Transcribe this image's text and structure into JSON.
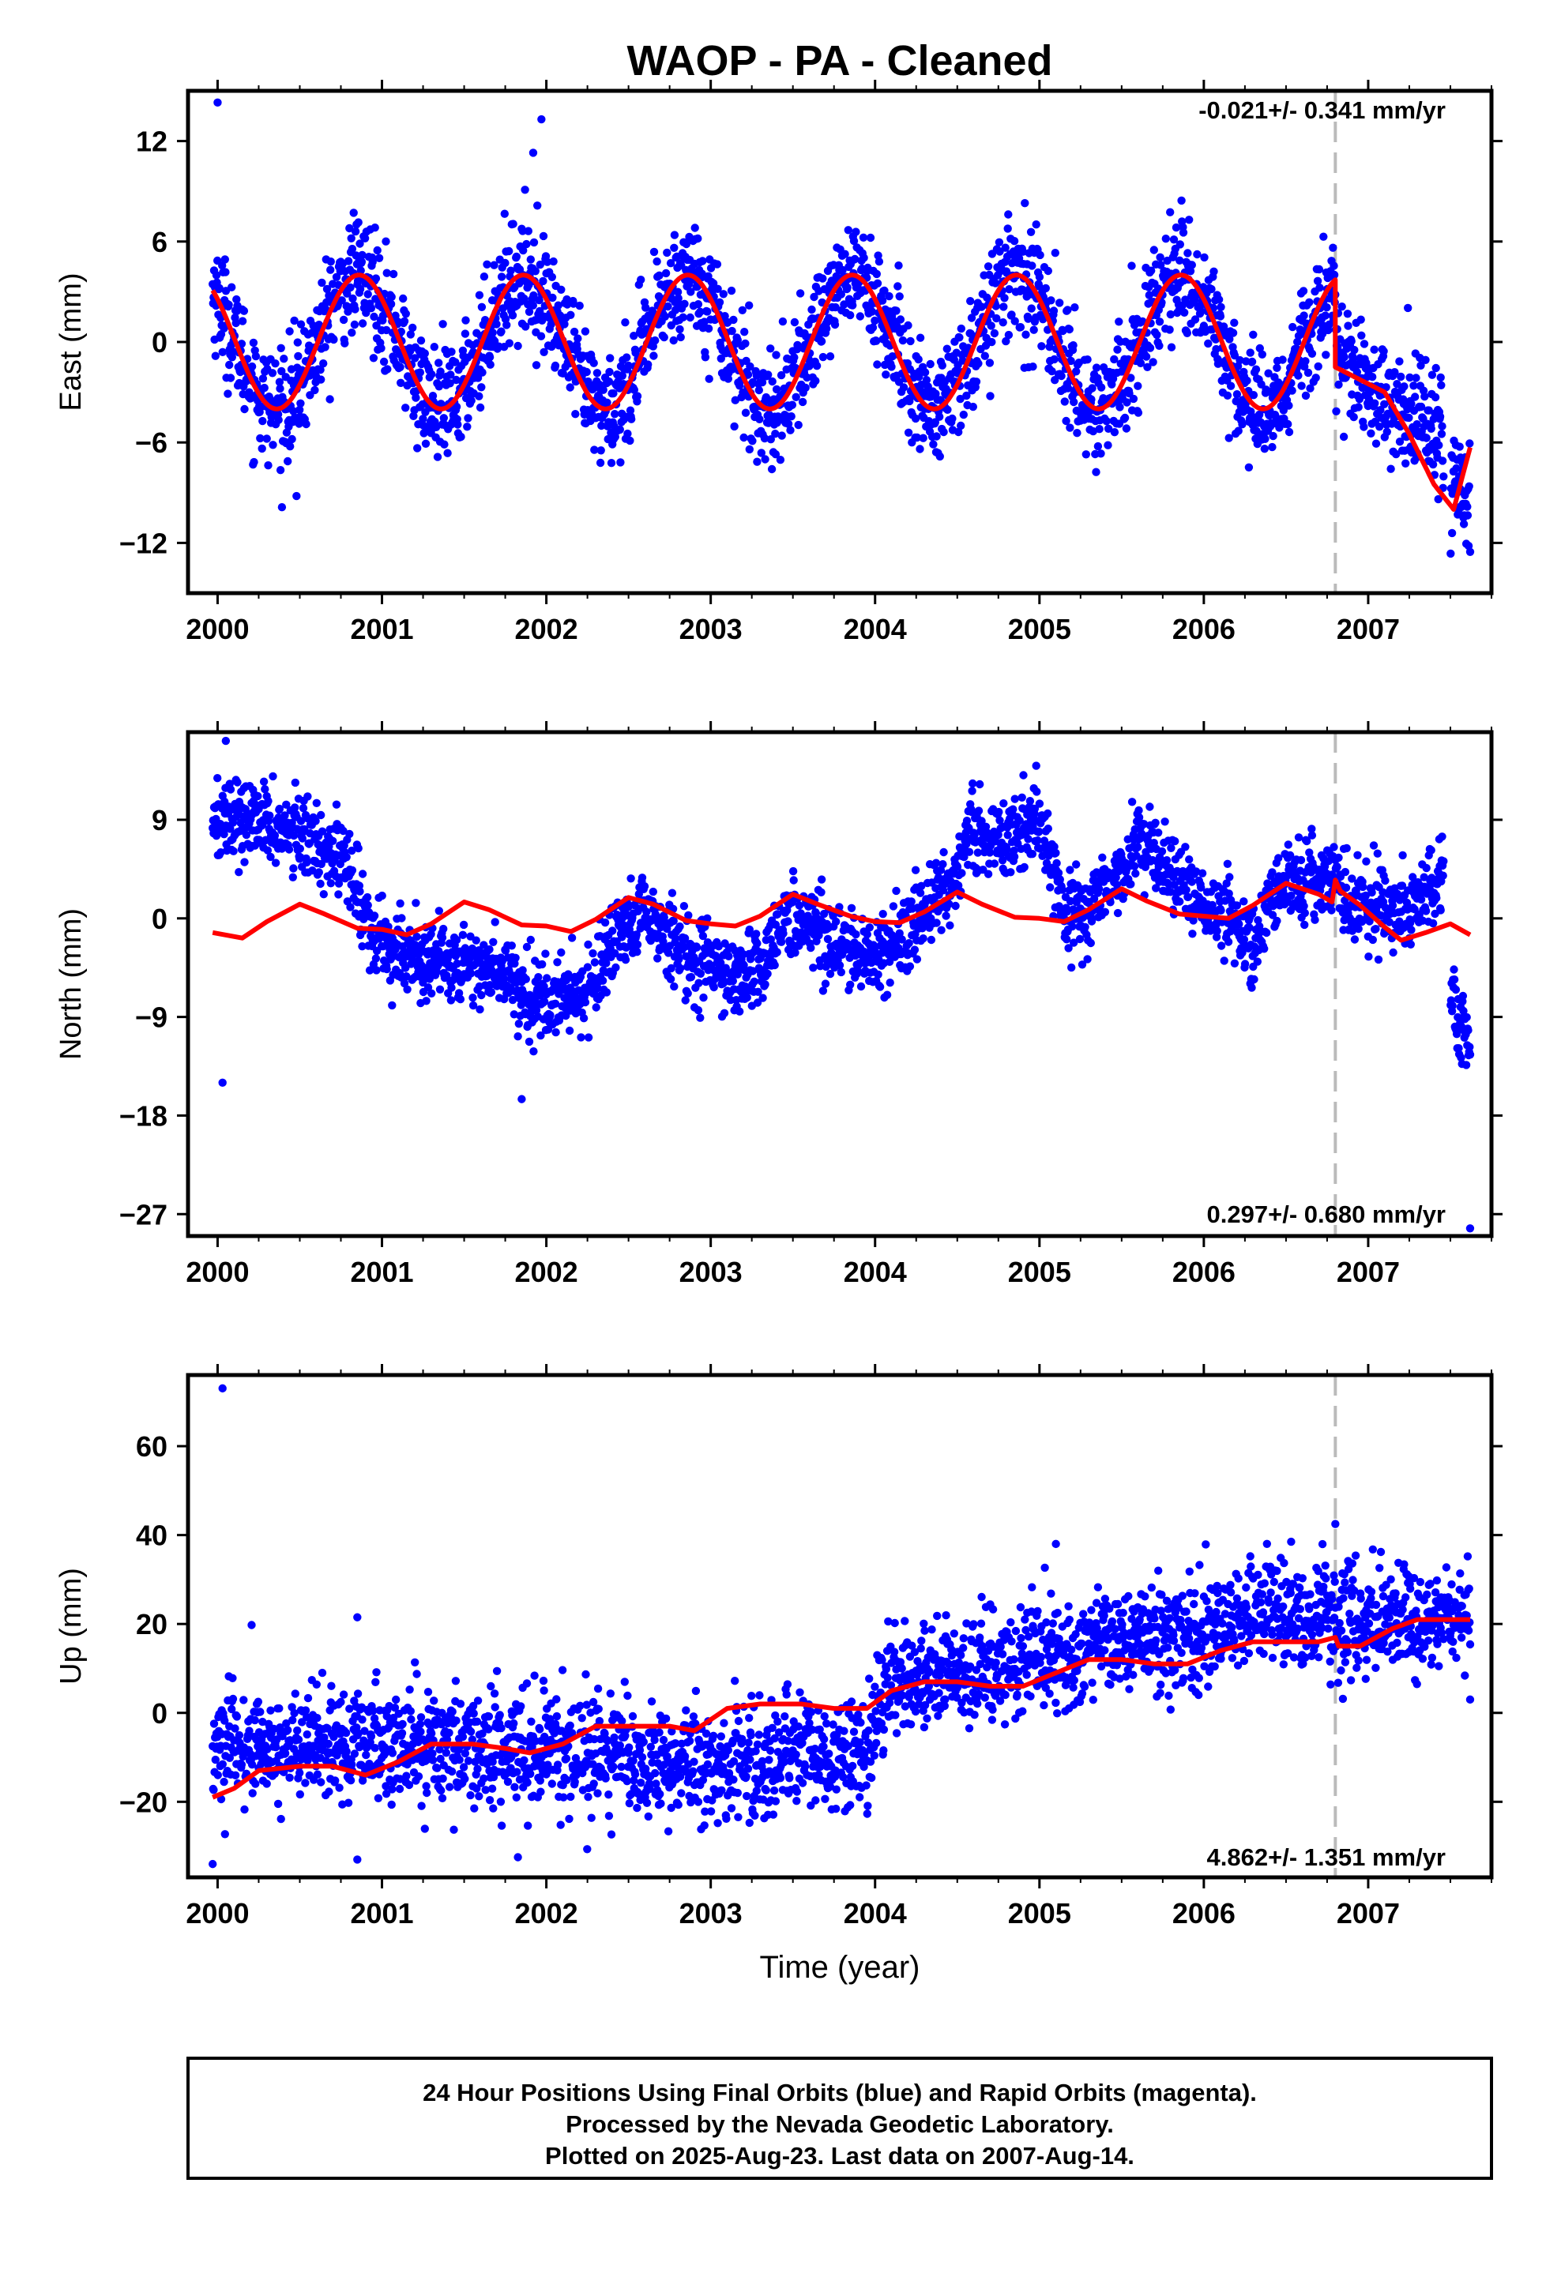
{
  "title": "WAOP  - PA - Cleaned",
  "xlabel": "Time (year)",
  "footer": {
    "line1": "24 Hour Positions Using Final Orbits (blue) and Rapid Orbits (magenta).",
    "line2": "Processed by the Nevada Geodetic Laboratory.",
    "line3": "Plotted on 2025-Aug-23. Last data on 2007-Aug-14."
  },
  "colors": {
    "data": "#0000ff",
    "model": "#ff0000",
    "event_line": "#bbbbbb",
    "frame": "#000000"
  },
  "chart_data": [
    {
      "type": "scatter",
      "component": "east",
      "ylabel": "East (mm)",
      "rate_label": "-0.021+/- 0.341 mm/yr",
      "xlim": [
        1999.82,
        2007.75
      ],
      "ylim": [
        -15,
        15
      ],
      "yticks": [
        12,
        6,
        0,
        -6,
        -12
      ],
      "xticks": [
        2000,
        2001,
        2002,
        2003,
        2004,
        2005,
        2006,
        2007
      ],
      "event_x": 2006.8,
      "model": {
        "type": "seasonal",
        "amplitude": 4.0,
        "phase_peak": 0.86,
        "offset": 0.0,
        "after_event": {
          "start": -1.5,
          "end": -6.3,
          "end_x": 2007.62,
          "amplitude": 3.5
        }
      },
      "series": [
        {
          "name": "Final Orbits",
          "x_start": 1999.97,
          "x_end": 2007.62,
          "count": 2650,
          "scatter": 1.7
        }
      ],
      "outliers": [
        {
          "x": 2000.0,
          "y": 14.3
        },
        {
          "x": 2001.97,
          "y": 13.3
        },
        {
          "x": 2001.92,
          "y": 11.3
        },
        {
          "x": 2000.48,
          "y": -9.2
        }
      ]
    },
    {
      "type": "scatter",
      "component": "north",
      "ylabel": "North (mm)",
      "rate_label": "0.297+/- 0.680 mm/yr",
      "xlim": [
        1999.82,
        2007.75
      ],
      "ylim": [
        -29,
        17
      ],
      "yticks": [
        9,
        0,
        -9,
        -18,
        -27
      ],
      "xticks": [
        2000,
        2001,
        2002,
        2003,
        2004,
        2005,
        2006,
        2007
      ],
      "event_x": 2006.8,
      "model_points": [
        [
          1999.97,
          -1.3
        ],
        [
          2000.15,
          -1.8
        ],
        [
          2000.3,
          -0.3
        ],
        [
          2000.5,
          1.3
        ],
        [
          2000.65,
          0.4
        ],
        [
          2000.85,
          -0.9
        ],
        [
          2001.0,
          -1.0
        ],
        [
          2001.15,
          -1.5
        ],
        [
          2001.3,
          -0.5
        ],
        [
          2001.5,
          1.5
        ],
        [
          2001.65,
          0.8
        ],
        [
          2001.85,
          -0.6
        ],
        [
          2002.0,
          -0.7
        ],
        [
          2002.15,
          -1.2
        ],
        [
          2002.3,
          -0.1
        ],
        [
          2002.5,
          1.9
        ],
        [
          2002.65,
          1.3
        ],
        [
          2002.85,
          -0.2
        ],
        [
          2003.0,
          -0.5
        ],
        [
          2003.15,
          -0.7
        ],
        [
          2003.3,
          0.2
        ],
        [
          2003.5,
          2.2
        ],
        [
          2003.65,
          1.3
        ],
        [
          2003.85,
          0.2
        ],
        [
          2004.0,
          -0.3
        ],
        [
          2004.15,
          -0.4
        ],
        [
          2004.3,
          0.6
        ],
        [
          2004.5,
          2.4
        ],
        [
          2004.65,
          1.3
        ],
        [
          2004.85,
          0.1
        ],
        [
          2005.0,
          0.0
        ],
        [
          2005.15,
          -0.3
        ],
        [
          2005.3,
          0.8
        ],
        [
          2005.5,
          2.7
        ],
        [
          2005.65,
          1.6
        ],
        [
          2005.85,
          0.4
        ],
        [
          2006.0,
          0.2
        ],
        [
          2006.15,
          0.0
        ],
        [
          2006.3,
          1.2
        ],
        [
          2006.5,
          3.2
        ],
        [
          2006.7,
          2.2
        ],
        [
          2006.78,
          1.5
        ],
        [
          2006.8,
          3.5
        ],
        [
          2006.83,
          2.5
        ],
        [
          2006.95,
          1.2
        ],
        [
          2007.1,
          -0.8
        ],
        [
          2007.2,
          -2.0
        ],
        [
          2007.35,
          -1.3
        ],
        [
          2007.5,
          -0.5
        ],
        [
          2007.62,
          -1.5
        ]
      ],
      "trend_points": [
        [
          1999.97,
          9.5
        ],
        [
          2000.3,
          8.5
        ],
        [
          2000.6,
          7.0
        ],
        [
          2000.75,
          6.0
        ],
        [
          2000.95,
          -1.5
        ],
        [
          2001.2,
          -3.5
        ],
        [
          2001.5,
          -4.0
        ],
        [
          2001.75,
          -5.0
        ],
        [
          2001.95,
          -7.5
        ],
        [
          2002.2,
          -7.0
        ],
        [
          2002.4,
          -3.0
        ],
        [
          2002.6,
          0.5
        ],
        [
          2002.8,
          -2.5
        ],
        [
          2003.0,
          -4.5
        ],
        [
          2003.2,
          -5.5
        ],
        [
          2003.35,
          -3.0
        ],
        [
          2003.5,
          0.5
        ],
        [
          2003.7,
          -1.5
        ],
        [
          2003.9,
          -3.5
        ],
        [
          2004.1,
          -2.5
        ],
        [
          2004.3,
          0.5
        ],
        [
          2004.5,
          4.0
        ],
        [
          2004.6,
          8.0
        ],
        [
          2004.8,
          6.5
        ],
        [
          2004.95,
          9.0
        ],
        [
          2005.05,
          8.0
        ],
        [
          2005.15,
          0.0
        ],
        [
          2005.3,
          0.5
        ],
        [
          2005.45,
          3.5
        ],
        [
          2005.6,
          7.0
        ],
        [
          2005.75,
          5.0
        ],
        [
          2005.95,
          1.5
        ],
        [
          2006.15,
          0.0
        ],
        [
          2006.3,
          -2.5
        ],
        [
          2006.45,
          2.5
        ],
        [
          2006.7,
          3.5
        ],
        [
          2006.8,
          4.5
        ],
        [
          2006.85,
          2.5
        ],
        [
          2007.0,
          0.5
        ],
        [
          2007.2,
          0.5
        ],
        [
          2007.42,
          3.0
        ],
        [
          2007.47,
          5.5
        ],
        [
          2007.5,
          -8.0
        ],
        [
          2007.62,
          -11.5
        ]
      ],
      "series": [
        {
          "name": "Final Orbits",
          "x_start": 1999.97,
          "x_end": 2007.62,
          "count": 2650,
          "scatter": 1.8
        }
      ],
      "outliers": [
        {
          "x": 2000.05,
          "y": 16.2
        },
        {
          "x": 2000.03,
          "y": -15.0
        },
        {
          "x": 2001.85,
          "y": -16.5
        },
        {
          "x": 2007.62,
          "y": -28.3
        }
      ]
    },
    {
      "type": "scatter",
      "component": "up",
      "ylabel": "Up (mm)",
      "rate_label": "4.862+/- 1.351 mm/yr",
      "xlim": [
        1999.82,
        2007.75
      ],
      "ylim": [
        -37,
        76
      ],
      "yticks": [
        60,
        40,
        20,
        0,
        -20
      ],
      "xticks": [
        2000,
        2001,
        2002,
        2003,
        2004,
        2005,
        2006,
        2007
      ],
      "event_x": 2006.8,
      "model_points": [
        [
          1999.97,
          -19.0
        ],
        [
          2000.1,
          -17.0
        ],
        [
          2000.25,
          -13.0
        ],
        [
          2000.5,
          -12.0
        ],
        [
          2000.7,
          -12.0
        ],
        [
          2000.9,
          -14.0
        ],
        [
          2001.1,
          -11.0
        ],
        [
          2001.3,
          -7.0
        ],
        [
          2001.55,
          -7.0
        ],
        [
          2001.75,
          -8.0
        ],
        [
          2001.9,
          -9.0
        ],
        [
          2002.1,
          -7.0
        ],
        [
          2002.3,
          -3.0
        ],
        [
          2002.5,
          -3.0
        ],
        [
          2002.75,
          -3.0
        ],
        [
          2002.9,
          -4.0
        ],
        [
          2003.1,
          1.0
        ],
        [
          2003.3,
          2.0
        ],
        [
          2003.55,
          2.0
        ],
        [
          2003.75,
          1.0
        ],
        [
          2003.95,
          1.0
        ],
        [
          2004.1,
          5.0
        ],
        [
          2004.3,
          7.0
        ],
        [
          2004.5,
          7.0
        ],
        [
          2004.7,
          6.0
        ],
        [
          2004.9,
          6.0
        ],
        [
          2005.1,
          9.0
        ],
        [
          2005.3,
          12.0
        ],
        [
          2005.5,
          12.0
        ],
        [
          2005.7,
          11.0
        ],
        [
          2005.9,
          11.0
        ],
        [
          2006.1,
          14.0
        ],
        [
          2006.3,
          16.0
        ],
        [
          2006.5,
          16.0
        ],
        [
          2006.7,
          16.0
        ],
        [
          2006.8,
          17.0
        ],
        [
          2006.82,
          15.0
        ],
        [
          2006.95,
          15.0
        ],
        [
          2007.15,
          19.0
        ],
        [
          2007.3,
          21.0
        ],
        [
          2007.5,
          21.0
        ],
        [
          2007.62,
          21.0
        ]
      ],
      "trend_points": [
        [
          1999.97,
          -8.0
        ],
        [
          2001.0,
          -7.0
        ],
        [
          2002.0,
          -8.0
        ],
        [
          2003.0,
          -12.0
        ],
        [
          2003.5,
          -10.0
        ],
        [
          2003.95,
          -9.0
        ],
        [
          2004.1,
          7.0
        ],
        [
          2004.5,
          9.0
        ],
        [
          2005.0,
          12.0
        ],
        [
          2005.5,
          16.0
        ],
        [
          2006.0,
          18.0
        ],
        [
          2006.5,
          22.0
        ],
        [
          2007.0,
          20.0
        ],
        [
          2007.62,
          21.0
        ]
      ],
      "series": [
        {
          "name": "Final Orbits",
          "x_start": 1999.97,
          "x_end": 2007.62,
          "count": 2650,
          "scatter": 6.2
        }
      ],
      "outliers": [
        {
          "x": 2000.03,
          "y": 73.0
        },
        {
          "x": 1999.97,
          "y": -34.0
        },
        {
          "x": 2000.85,
          "y": 21.5
        },
        {
          "x": 2000.85,
          "y": -33.0
        },
        {
          "x": 2005.1,
          "y": 38.0
        },
        {
          "x": 2006.8,
          "y": 42.5
        },
        {
          "x": 2007.62,
          "y": 3.0
        }
      ]
    }
  ]
}
